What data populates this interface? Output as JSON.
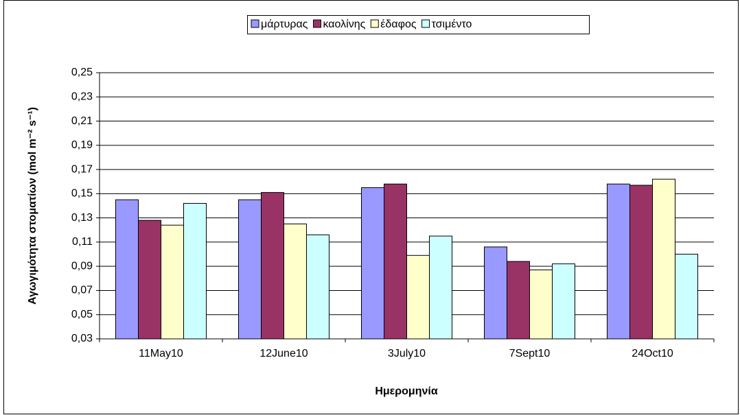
{
  "chart_data": {
    "type": "bar",
    "x_label": "Ημερομηνία",
    "y_label": "Αγωγιμότητα στοματίων (mol m⁻² s⁻¹)",
    "categories": [
      "11May10",
      "12June10",
      "3July10",
      "7Sept10",
      "24Oct10"
    ],
    "series": [
      {
        "name": "μάρτυρας",
        "color": "#9999ff",
        "values": [
          0.145,
          0.145,
          0.155,
          0.106,
          0.158
        ]
      },
      {
        "name": "καολίνης",
        "color": "#993366",
        "values": [
          0.128,
          0.151,
          0.158,
          0.094,
          0.157
        ]
      },
      {
        "name": "έδαφος",
        "color": "#ffffcc",
        "values": [
          0.124,
          0.125,
          0.099,
          0.087,
          0.162
        ]
      },
      {
        "name": "τσιμέντο",
        "color": "#ccffff",
        "values": [
          0.142,
          0.116,
          0.115,
          0.092,
          0.1
        ]
      }
    ],
    "ylim": [
      0.03,
      0.25
    ],
    "yticks": [
      {
        "value": 0.03,
        "label": "0,03"
      },
      {
        "value": 0.05,
        "label": "0,05"
      },
      {
        "value": 0.07,
        "label": "0,07"
      },
      {
        "value": 0.09,
        "label": "0,09"
      },
      {
        "value": 0.11,
        "label": "0,11"
      },
      {
        "value": 0.13,
        "label": "0,13"
      },
      {
        "value": 0.15,
        "label": "0,15"
      },
      {
        "value": 0.17,
        "label": "0,17"
      },
      {
        "value": 0.19,
        "label": "0,19"
      },
      {
        "value": 0.21,
        "label": "0,21"
      },
      {
        "value": 0.23,
        "label": "0,23"
      },
      {
        "value": 0.25,
        "label": "0,25"
      }
    ],
    "grid": true,
    "legend": "top"
  }
}
